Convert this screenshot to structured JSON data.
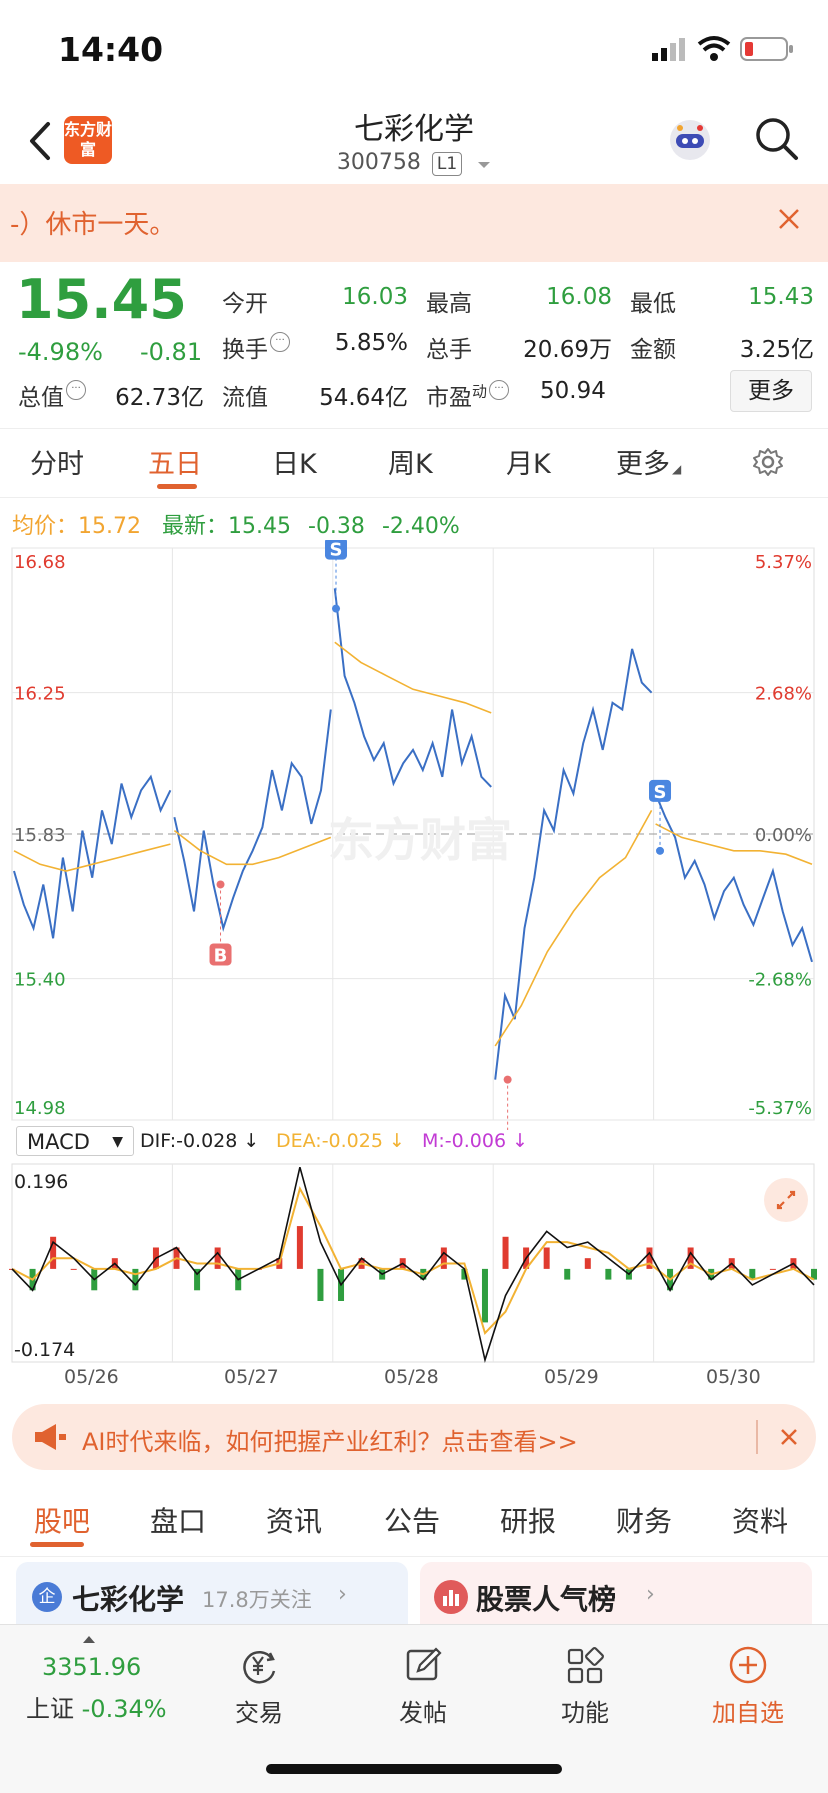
{
  "status_bar": {
    "time": "14:40"
  },
  "header": {
    "brand": "东方财富",
    "name": "七彩化学",
    "code": "300758",
    "level_badge": "L1"
  },
  "notice": {
    "text": "-）休市一天。"
  },
  "quote": {
    "price": "15.45",
    "change_pct": "-4.98%",
    "change": "-0.81",
    "fields": {
      "open_label": "今开",
      "open": "16.03",
      "high_label": "最高",
      "high": "16.08",
      "low_label": "最低",
      "low": "15.43",
      "turnover_label": "换手",
      "turnover": "5.85%",
      "volume_label": "总手",
      "volume": "20.69万",
      "amount_label": "金额",
      "amount": "3.25亿",
      "mcap_label": "总值",
      "mcap": "62.73亿",
      "float_label": "流值",
      "float": "54.64亿",
      "pe_label": "市盈",
      "pe_sup": "动",
      "pe": "50.94"
    },
    "more_button": "更多"
  },
  "chart_tabs": [
    "分时",
    "五日",
    "日K",
    "周K",
    "月K",
    "更多"
  ],
  "active_chart_tab": 1,
  "chart_info": {
    "avg_label": "均价：",
    "avg": "15.72",
    "last_label": "最新：",
    "last": "15.45",
    "last_change": "-0.38",
    "last_change_pct": "-2.40%"
  },
  "chart_data": {
    "type": "line",
    "title": "",
    "y_ticks_left": [
      "16.68",
      "16.25",
      "15.83",
      "15.40",
      "14.98"
    ],
    "y_ticks_right": [
      "5.37%",
      "2.68%",
      "0.00%",
      "-2.68%",
      "-5.37%"
    ],
    "ylim": [
      14.98,
      16.68
    ],
    "baseline": 15.83,
    "days": [
      "05/26",
      "05/27",
      "05/28",
      "05/29",
      "05/30"
    ],
    "watermark": "东方财富",
    "series": [
      {
        "name": "price",
        "color": "#3a6fc4",
        "days": [
          [
            15.72,
            15.62,
            15.55,
            15.68,
            15.52,
            15.76,
            15.6,
            15.84,
            15.7,
            15.9,
            15.8,
            15.98,
            15.88,
            15.96,
            16.0,
            15.9,
            15.96
          ],
          [
            15.88,
            15.75,
            15.6,
            15.84,
            15.68,
            15.55,
            15.64,
            15.72,
            15.78,
            15.85,
            16.02,
            15.9,
            16.04,
            16.0,
            15.86,
            15.96,
            16.2
          ],
          [
            16.56,
            16.3,
            16.22,
            16.12,
            16.05,
            16.1,
            15.98,
            16.04,
            16.08,
            16.02,
            16.1,
            16.0,
            16.2,
            16.04,
            16.12,
            16.0,
            15.97
          ],
          [
            15.1,
            15.35,
            15.28,
            15.55,
            15.7,
            15.9,
            15.84,
            16.02,
            15.95,
            16.1,
            16.2,
            16.08,
            16.22,
            16.2,
            16.38,
            16.28,
            16.25
          ],
          [
            15.95,
            15.88,
            15.82,
            15.7,
            15.75,
            15.68,
            15.58,
            15.66,
            15.7,
            15.62,
            15.56,
            15.64,
            15.72,
            15.6,
            15.5,
            15.55,
            15.45
          ]
        ]
      },
      {
        "name": "average",
        "color": "#f2b233",
        "days": [
          [
            15.78,
            15.74,
            15.72,
            15.74,
            15.76,
            15.78,
            15.8
          ],
          [
            15.84,
            15.78,
            15.74,
            15.74,
            15.76,
            15.79,
            15.82
          ],
          [
            16.4,
            16.34,
            16.3,
            16.26,
            16.24,
            16.22,
            16.19
          ],
          [
            15.2,
            15.32,
            15.48,
            15.6,
            15.7,
            15.76,
            15.9
          ],
          [
            15.86,
            15.82,
            15.8,
            15.78,
            15.78,
            15.77,
            15.74
          ]
        ]
      }
    ],
    "markers": [
      {
        "label": "B",
        "day": 1,
        "pos": 0.3,
        "price": 15.68
      },
      {
        "label": "S",
        "day": 2,
        "pos": 0.02,
        "price": 16.5
      },
      {
        "label": "B",
        "day": 3,
        "pos": 0.09,
        "price": 15.1
      },
      {
        "label": "S",
        "day": 4,
        "pos": 0.04,
        "price": 15.78
      }
    ]
  },
  "macd": {
    "selector": "MACD",
    "dif": "DIF:-0.028 ↓",
    "dea": "DEA:-0.025 ↓",
    "m": "M:-0.006 ↓",
    "y_max_label": "0.196",
    "y_min_label": "-0.174",
    "ylim": [
      -0.174,
      0.196
    ],
    "dif_values": [
      0.0,
      -0.04,
      0.05,
      0.02,
      -0.02,
      0.01,
      -0.03,
      0.02,
      0.04,
      -0.01,
      0.03,
      -0.02,
      0.0,
      0.02,
      0.19,
      0.05,
      -0.03,
      0.02,
      -0.01,
      0.01,
      -0.02,
      0.03,
      0.0,
      -0.17,
      -0.05,
      0.02,
      0.07,
      0.04,
      0.05,
      0.02,
      -0.01,
      0.03,
      -0.04,
      0.03,
      -0.02,
      0.01,
      -0.03,
      -0.01,
      0.01,
      -0.03
    ],
    "dea_values": [
      0.0,
      -0.02,
      0.02,
      0.02,
      0.0,
      0.0,
      -0.01,
      0.0,
      0.02,
      0.01,
      0.01,
      0.0,
      0.0,
      0.01,
      0.15,
      0.08,
      0.0,
      0.01,
      0.0,
      0.0,
      -0.01,
      0.01,
      0.01,
      -0.12,
      -0.08,
      0.0,
      0.05,
      0.05,
      0.04,
      0.03,
      0.0,
      0.01,
      -0.02,
      0.01,
      -0.01,
      0.0,
      -0.02,
      -0.01,
      0.0,
      -0.02
    ]
  },
  "ad_banner": {
    "text": "AI时代来临，如何把握产业红利？点击查看>>"
  },
  "bottom_tabs": [
    "股吧",
    "盘口",
    "资讯",
    "公告",
    "研报",
    "财务",
    "资料"
  ],
  "active_bottom_tab": 0,
  "cards": {
    "left_title": "七彩化学",
    "left_follow": "17.8万关注",
    "right_title": "股票人气榜"
  },
  "bottom_nav": {
    "index_value": "3351.96",
    "index_name": "上证",
    "index_change": "-0.34%",
    "trade": "交易",
    "post": "发帖",
    "functions": "功能",
    "add_watch": "加自选"
  },
  "colors": {
    "accent": "#e0622f",
    "down": "#2f9e3f",
    "up": "#e03b2f",
    "price_line": "#3a6fc4",
    "avg_line": "#f2b233"
  }
}
